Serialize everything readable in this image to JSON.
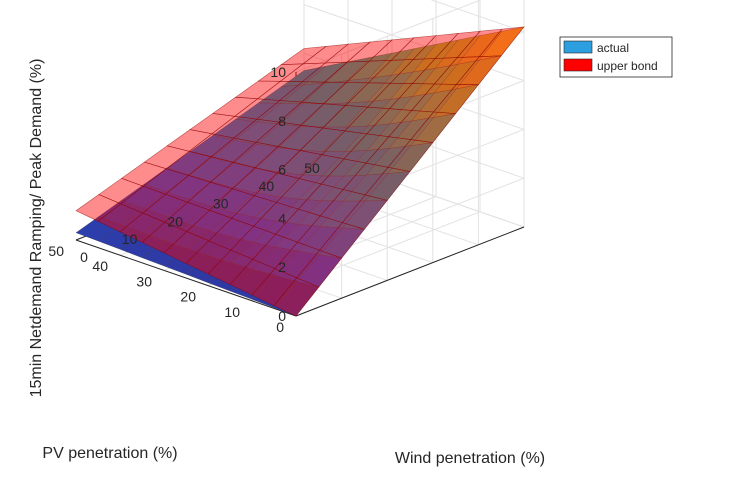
{
  "chart_data": {
    "type": "surface",
    "xlabel": "PV penetration (%)",
    "ylabel": "Wind penetration (%)",
    "zlabel": "15min Netdemand Ramping/ Peak Demand (%)",
    "x_ticks": [
      "0",
      "10",
      "20",
      "30",
      "40",
      "50"
    ],
    "y_ticks": [
      "0",
      "10",
      "20",
      "30",
      "40",
      "50"
    ],
    "z_ticks": [
      "0",
      "2",
      "4",
      "6",
      "8",
      "10"
    ],
    "xlim": [
      0,
      50
    ],
    "ylim": [
      0,
      50
    ],
    "zlim": [
      0,
      10
    ],
    "grid": true,
    "legend_position": "top-right",
    "series": [
      {
        "name": "actual",
        "color": "#2c9fe0",
        "corner_values": {
          "pv0_wind0": 0,
          "pv50_wind0": 0.3,
          "pv0_wind50": 8.2,
          "pv50_wind50": 3.3
        }
      },
      {
        "name": "upper bond",
        "color": "#ff0000",
        "corner_values": {
          "pv0_wind0": 0,
          "pv50_wind0": 1.2,
          "pv0_wind50": 8.2,
          "pv50_wind50": 4.2
        }
      }
    ]
  }
}
